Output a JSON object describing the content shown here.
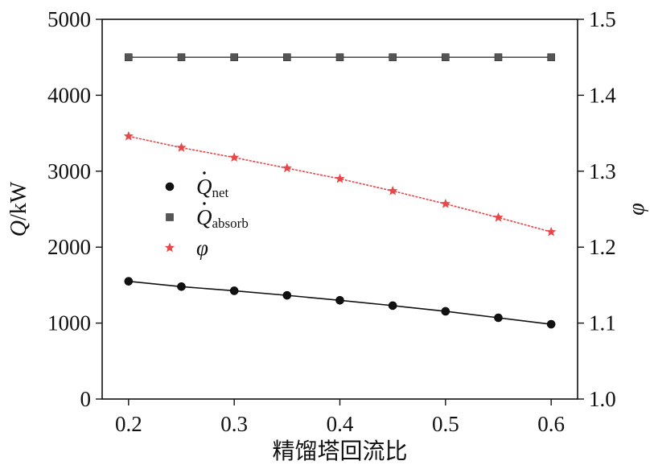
{
  "chart_data": {
    "type": "line",
    "xlabel": "精馏塔回流比",
    "ylabel_left": "Q/kW",
    "ylabel_right": "φ",
    "x_ticks": [
      "0.2",
      "0.3",
      "0.4",
      "0.5",
      "0.6"
    ],
    "y_left_ticks": [
      "0",
      "1000",
      "2000",
      "3000",
      "4000",
      "5000"
    ],
    "y_right_ticks": [
      "1.0",
      "1.1",
      "1.2",
      "1.3",
      "1.4",
      "1.5"
    ],
    "xlim": [
      0.175,
      0.625
    ],
    "ylim_left": [
      0,
      5000
    ],
    "ylim_right": [
      1.0,
      1.5
    ],
    "grid": false,
    "legend_position": "center-left",
    "x": [
      0.2,
      0.25,
      0.3,
      0.35,
      0.4,
      0.45,
      0.5,
      0.55,
      0.6
    ],
    "series": [
      {
        "name": "Q_net",
        "legend_main": "Q",
        "legend_sub": "net",
        "axis": "left",
        "marker": "circle",
        "color": "#111111",
        "values": [
          1550,
          1480,
          1425,
          1365,
          1300,
          1230,
          1155,
          1070,
          985
        ]
      },
      {
        "name": "Q_absorb",
        "legend_main": "Q",
        "legend_sub": "absorb",
        "axis": "left",
        "marker": "square",
        "color": "#555555",
        "values": [
          4500,
          4500,
          4500,
          4500,
          4500,
          4500,
          4500,
          4500,
          4500
        ]
      },
      {
        "name": "φ",
        "legend_main": "φ",
        "legend_sub": "",
        "axis": "right",
        "marker": "star",
        "color": "#e8474a",
        "values": [
          1.346,
          1.331,
          1.318,
          1.304,
          1.29,
          1.274,
          1.257,
          1.239,
          1.22
        ]
      }
    ]
  }
}
